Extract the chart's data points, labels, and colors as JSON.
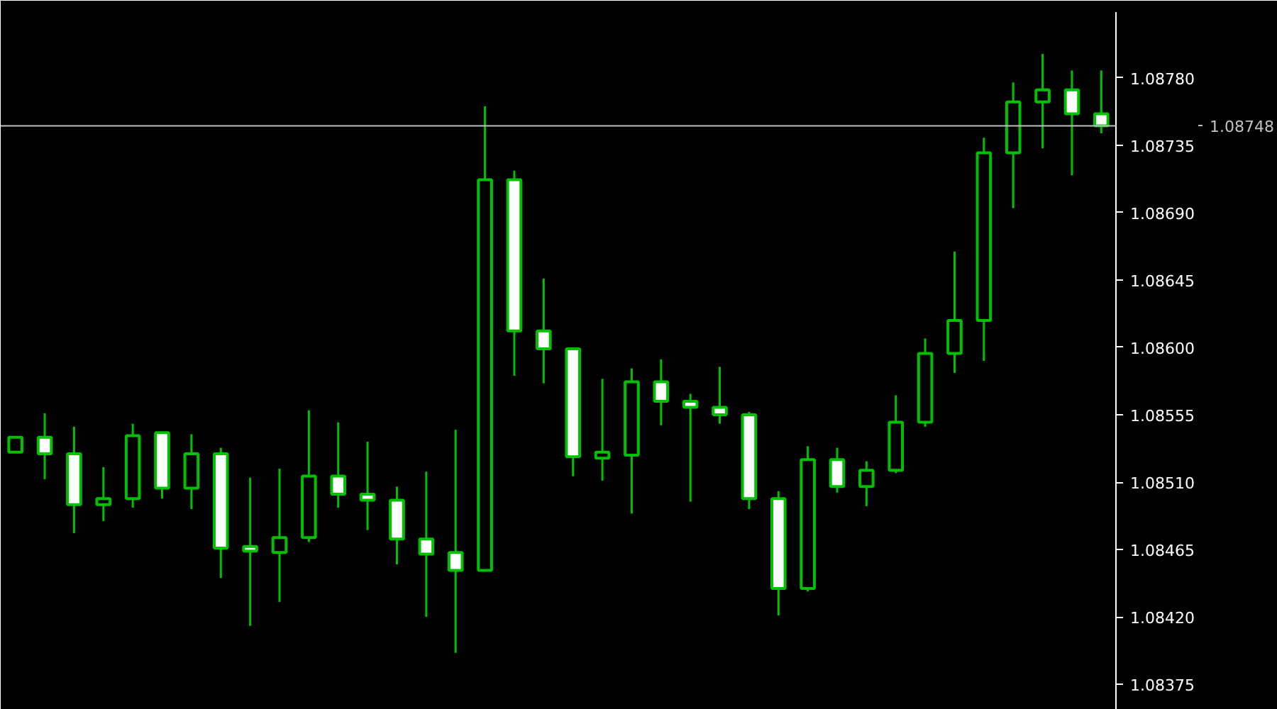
{
  "chart_data": {
    "type": "candlestick",
    "categories": [
      null,
      null,
      null,
      null,
      null,
      null,
      null,
      null,
      null,
      null,
      null,
      null,
      null,
      null,
      null,
      null,
      null,
      null,
      null,
      null,
      null,
      null,
      null,
      null,
      null,
      null,
      null,
      null,
      null,
      null,
      null,
      null,
      null,
      null,
      null,
      null,
      null,
      null
    ],
    "ohlc": [
      [
        1.0853,
        1.0854,
        1.0853,
        1.0854
      ],
      [
        1.0854,
        1.08556,
        1.08512,
        1.08529
      ],
      [
        1.08529,
        1.08547,
        1.08476,
        1.08495
      ],
      [
        1.08495,
        1.0852,
        1.08484,
        1.08499
      ],
      [
        1.08499,
        1.08549,
        1.08493,
        1.08541
      ],
      [
        1.08543,
        1.08543,
        1.08499,
        1.08506
      ],
      [
        1.08506,
        1.08542,
        1.08492,
        1.08529
      ],
      [
        1.08529,
        1.08533,
        1.08446,
        1.08466
      ],
      [
        1.08467,
        1.08513,
        1.08414,
        1.08464
      ],
      [
        1.08463,
        1.08519,
        1.0843,
        1.08473
      ],
      [
        1.08473,
        1.08558,
        1.0847,
        1.08514
      ],
      [
        1.08514,
        1.0855,
        1.08493,
        1.08502
      ],
      [
        1.08502,
        1.08537,
        1.08478,
        1.08498
      ],
      [
        1.08498,
        1.08507,
        1.08455,
        1.08472
      ],
      [
        1.08472,
        1.08517,
        1.0842,
        1.08462
      ],
      [
        1.08463,
        1.08545,
        1.08396,
        1.08451
      ],
      [
        1.08451,
        1.08761,
        1.08451,
        1.08712
      ],
      [
        1.08712,
        1.08718,
        1.08581,
        1.08611
      ],
      [
        1.08611,
        1.08646,
        1.08576,
        1.08599
      ],
      [
        1.08599,
        1.08599,
        1.08514,
        1.08527
      ],
      [
        1.08526,
        1.08579,
        1.08511,
        1.0853
      ],
      [
        1.08528,
        1.08586,
        1.08489,
        1.08577
      ],
      [
        1.08577,
        1.08592,
        1.08548,
        1.08564
      ],
      [
        1.08564,
        1.08569,
        1.08497,
        1.0856
      ],
      [
        1.0856,
        1.08587,
        1.08549,
        1.08555
      ],
      [
        1.08555,
        1.08557,
        1.08492,
        1.08499
      ],
      [
        1.08499,
        1.08504,
        1.08421,
        1.08439
      ],
      [
        1.08439,
        1.08534,
        1.08437,
        1.08525
      ],
      [
        1.08525,
        1.08533,
        1.08503,
        1.08507
      ],
      [
        1.08507,
        1.08524,
        1.08494,
        1.08518
      ],
      [
        1.08518,
        1.08568,
        1.08516,
        1.0855
      ],
      [
        1.0855,
        1.08606,
        1.08547,
        1.08596
      ],
      [
        1.08596,
        1.08664,
        1.08583,
        1.08618
      ],
      [
        1.08618,
        1.0874,
        1.08591,
        1.0873
      ],
      [
        1.0873,
        1.08777,
        1.08693,
        1.08764
      ],
      [
        1.08764,
        1.08796,
        1.08733,
        1.08772
      ],
      [
        1.08772,
        1.08785,
        1.08715,
        1.08756
      ],
      [
        1.08756,
        1.08785,
        1.08743,
        1.08748
      ]
    ],
    "color": "#00c000",
    "colors": [
      "#000000",
      "#ffffff",
      "#ffffff",
      "#000000",
      "#000000",
      "#ffffff",
      "#000000",
      "#ffffff",
      "#ffffff",
      "#000000",
      "#000000",
      "#ffffff",
      "#ffffff",
      "#ffffff",
      "#ffffff",
      "#ffffff",
      "#000000",
      "#ffffff",
      "#ffffff",
      "#ffffff",
      "#000000",
      "#000000",
      "#ffffff",
      "#ffffff",
      "#ffffff",
      "#ffffff",
      "#ffffff",
      "#000000",
      "#ffffff",
      "#000000",
      "#000000",
      "#000000",
      "#000000",
      "#000000",
      "#000000",
      "#000000",
      "#ffffff",
      "#ffffff"
    ],
    "ylim": [
      1.08358,
      1.08824
    ],
    "yticks": [
      {
        "value": 1.08375,
        "label": "1.08375"
      },
      {
        "value": 1.0842,
        "label": "1.08420"
      },
      {
        "value": 1.08465,
        "label": "1.08465"
      },
      {
        "value": 1.0851,
        "label": "1.08510"
      },
      {
        "value": 1.08555,
        "label": "1.08555"
      },
      {
        "value": 1.086,
        "label": "1.08600"
      },
      {
        "value": 1.08645,
        "label": "1.08645"
      },
      {
        "value": 1.0869,
        "label": "1.08690"
      },
      {
        "value": 1.08735,
        "label": "1.08735"
      },
      {
        "value": 1.0878,
        "label": "1.08780"
      }
    ],
    "ref_lines": [
      {
        "axis": "y",
        "value": 1.08748,
        "label": "1.08748",
        "color": "#c0c0c0"
      }
    ],
    "grid": false
  }
}
